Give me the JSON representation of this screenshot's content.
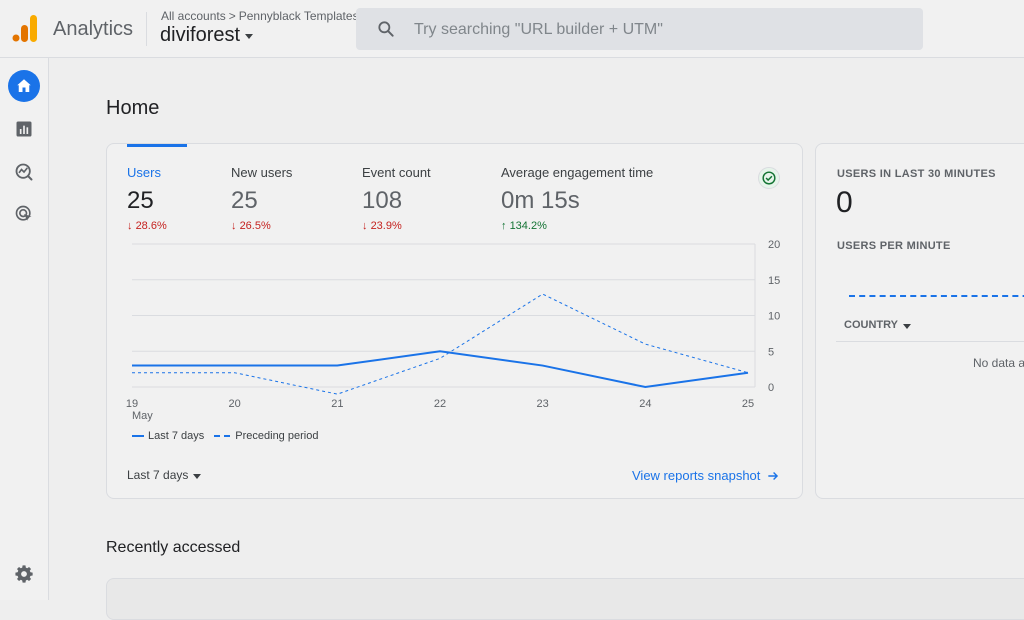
{
  "header": {
    "product_name": "Analytics",
    "breadcrumb": {
      "root": "All accounts",
      "separator": ">",
      "account": "Pennyblack Templates"
    },
    "property": "diviforest",
    "search_placeholder": "Try searching \"URL builder + UTM\"",
    "search_value": ""
  },
  "rail": {
    "items": [
      {
        "icon": "home-icon",
        "active": true
      },
      {
        "icon": "reports-icon",
        "active": false
      },
      {
        "icon": "explore-icon",
        "active": false
      },
      {
        "icon": "advertising-icon",
        "active": false
      }
    ],
    "settings_icon": "gear-icon"
  },
  "page": {
    "title": "Home"
  },
  "metrics": [
    {
      "label": "Users",
      "value": "25",
      "change": "28.6%",
      "direction": "down"
    },
    {
      "label": "New users",
      "value": "25",
      "change": "26.5%",
      "direction": "down"
    },
    {
      "label": "Event count",
      "value": "108",
      "change": "23.9%",
      "direction": "down"
    },
    {
      "label": "Average engagement time",
      "value": "0m 15s",
      "change": "134.2%",
      "direction": "up"
    }
  ],
  "chart_data": {
    "type": "line",
    "x": [
      "19",
      "20",
      "21",
      "22",
      "23",
      "24",
      "25"
    ],
    "x_sublabel": "May",
    "y_ticks": [
      "0",
      "5",
      "10",
      "15",
      "20"
    ],
    "ylim": [
      0,
      20
    ],
    "series": [
      {
        "name": "Last 7 days",
        "style": "solid",
        "values": [
          3,
          3,
          3,
          5,
          3,
          0,
          2
        ]
      },
      {
        "name": "Preceding period",
        "style": "dashed",
        "values": [
          2,
          2,
          -1,
          4,
          13,
          6,
          2
        ]
      }
    ],
    "color": "#1a73e8",
    "grid": true
  },
  "range_label": "Last 7 days",
  "snapshot_link": "View reports snapshot",
  "realtime": {
    "title": "USERS IN LAST 30 MINUTES",
    "count": "0",
    "per_minute_label": "USERS PER MINUTE",
    "country_label": "COUNTRY",
    "no_data": "No data a"
  },
  "recent": {
    "title": "Recently accessed"
  }
}
